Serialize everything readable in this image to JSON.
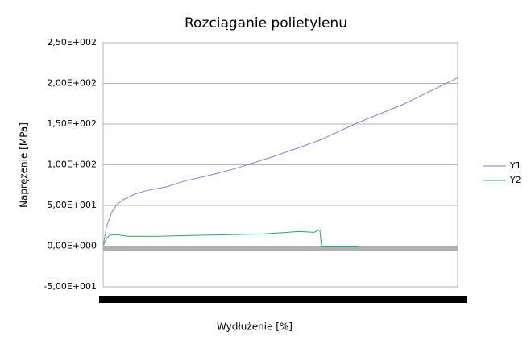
{
  "chart_data": {
    "type": "line",
    "title": "Rozciąganie polietylenu",
    "x_label": "Wydłużenie [%]",
    "y_label": "Naprężenie [MPa]",
    "xlim": [
      0,
      100
    ],
    "ylim": [
      -50,
      250
    ],
    "yticks": [
      {
        "value": -50,
        "label": "-5,00E+001"
      },
      {
        "value": 0,
        "label": "0,00E+000"
      },
      {
        "value": 50,
        "label": "5,00E+001"
      },
      {
        "value": 100,
        "label": "1,00E+002"
      },
      {
        "value": 150,
        "label": "1,50E+002"
      },
      {
        "value": 200,
        "label": "2,00E+002"
      },
      {
        "value": 250,
        "label": "2,50E+002"
      }
    ],
    "grid": true,
    "legend": "right",
    "series": [
      {
        "name": "Y1",
        "color": "#8080e0",
        "x": [
          0,
          1,
          2.5,
          4,
          6,
          9,
          12,
          18,
          23,
          30,
          37,
          48,
          61,
          71,
          85,
          100
        ],
        "values": [
          0,
          25,
          42,
          52,
          58,
          64,
          68,
          73,
          80,
          87,
          95,
          110,
          130,
          150,
          175,
          207
        ]
      },
      {
        "name": "Y2",
        "color": "#20b060",
        "x": [
          0,
          1,
          2,
          4,
          7,
          15,
          23,
          35,
          45,
          52,
          55,
          59.5,
          61.1,
          61.6,
          72
        ],
        "values": [
          0,
          10,
          14,
          14,
          12,
          12,
          13,
          14,
          15,
          17,
          18,
          17,
          20,
          0,
          0
        ]
      }
    ]
  }
}
